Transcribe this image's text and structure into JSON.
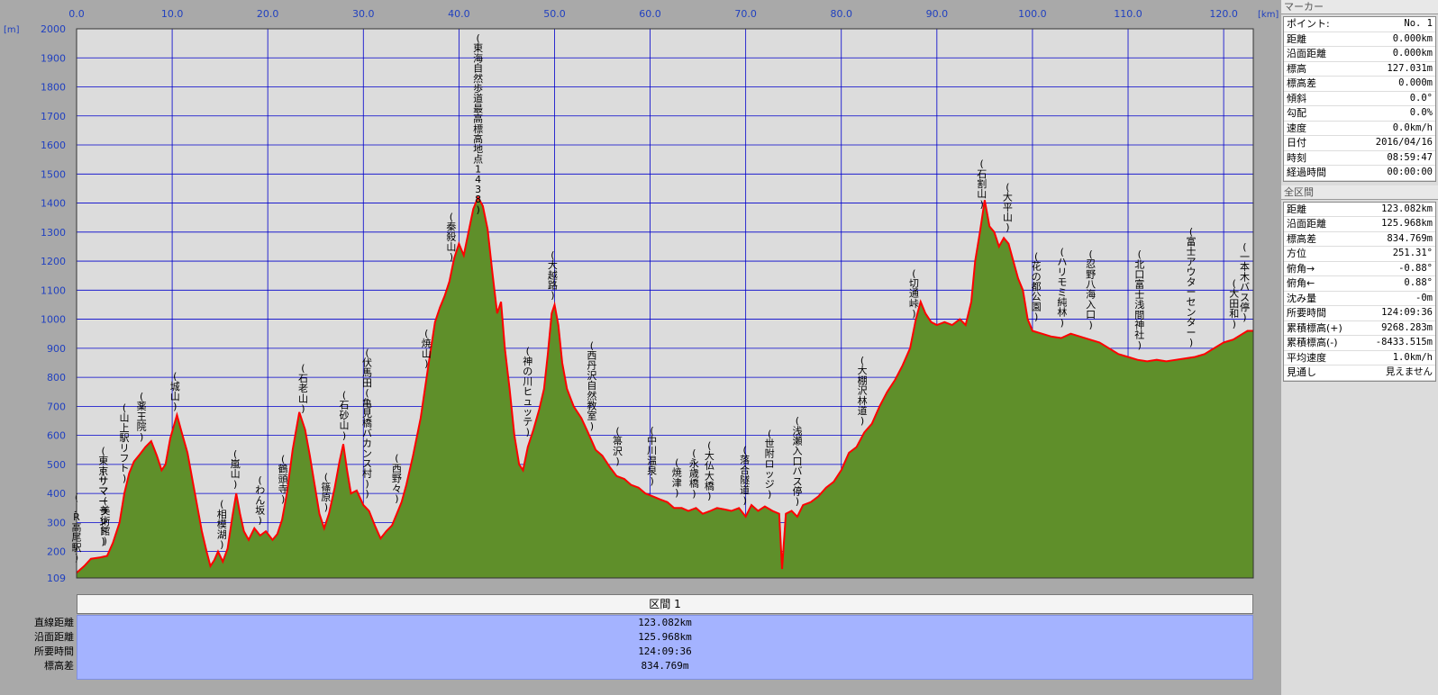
{
  "chart_data": {
    "type": "area",
    "x_unit": "[km]",
    "y_unit": "[m]",
    "xlim": [
      0,
      123.1
    ],
    "ylim": [
      109,
      2000
    ],
    "x_ticks": [
      "0.0",
      "10.0",
      "20.0",
      "30.0",
      "40.0",
      "50.0",
      "60.0",
      "70.0",
      "80.0",
      "90.0",
      "100.0",
      "110.0",
      "120.0"
    ],
    "y_ticks": [
      "2000",
      "1900",
      "1800",
      "1700",
      "1600",
      "1500",
      "1400",
      "1300",
      "1200",
      "1100",
      "1000",
      "900",
      "800",
      "700",
      "600",
      "500",
      "400",
      "300",
      "200",
      "109"
    ],
    "colors": {
      "plot_bg": "#dcdcdc",
      "grid": "#0000cc",
      "fill": "#5f8f2a",
      "line": "#ff0000"
    },
    "profile": [
      [
        0,
        127
      ],
      [
        0.8,
        150
      ],
      [
        1.5,
        175
      ],
      [
        2.5,
        180
      ],
      [
        3.2,
        185
      ],
      [
        3.8,
        230
      ],
      [
        4.5,
        300
      ],
      [
        5.0,
        400
      ],
      [
        5.5,
        470
      ],
      [
        6.0,
        510
      ],
      [
        6.5,
        530
      ],
      [
        7.2,
        560
      ],
      [
        7.8,
        580
      ],
      [
        8.4,
        530
      ],
      [
        8.9,
        480
      ],
      [
        9.3,
        500
      ],
      [
        9.8,
        590
      ],
      [
        10.5,
        670
      ],
      [
        11.0,
        610
      ],
      [
        11.6,
        540
      ],
      [
        12.1,
        450
      ],
      [
        12.6,
        360
      ],
      [
        13.1,
        270
      ],
      [
        13.6,
        200
      ],
      [
        14.0,
        150
      ],
      [
        14.4,
        170
      ],
      [
        14.8,
        200
      ],
      [
        15.3,
        165
      ],
      [
        15.8,
        210
      ],
      [
        16.3,
        320
      ],
      [
        16.7,
        400
      ],
      [
        17.1,
        330
      ],
      [
        17.5,
        270
      ],
      [
        18.0,
        240
      ],
      [
        18.6,
        280
      ],
      [
        19.2,
        255
      ],
      [
        19.8,
        270
      ],
      [
        20.5,
        240
      ],
      [
        21.0,
        260
      ],
      [
        21.5,
        310
      ],
      [
        22.0,
        400
      ],
      [
        22.6,
        550
      ],
      [
        23.3,
        680
      ],
      [
        23.9,
        620
      ],
      [
        24.4,
        530
      ],
      [
        24.9,
        430
      ],
      [
        25.4,
        330
      ],
      [
        25.9,
        280
      ],
      [
        26.4,
        330
      ],
      [
        27.0,
        420
      ],
      [
        27.5,
        510
      ],
      [
        27.9,
        570
      ],
      [
        28.3,
        480
      ],
      [
        28.7,
        400
      ],
      [
        29.3,
        410
      ],
      [
        30.0,
        360
      ],
      [
        30.6,
        340
      ],
      [
        31.2,
        290
      ],
      [
        31.8,
        245
      ],
      [
        32.4,
        270
      ],
      [
        33.0,
        290
      ],
      [
        33.5,
        330
      ],
      [
        34.0,
        370
      ],
      [
        34.5,
        430
      ],
      [
        35.2,
        530
      ],
      [
        36.0,
        660
      ],
      [
        36.8,
        840
      ],
      [
        37.5,
        990
      ],
      [
        38.0,
        1040
      ],
      [
        38.5,
        1080
      ],
      [
        39.0,
        1130
      ],
      [
        39.5,
        1210
      ],
      [
        40.0,
        1260
      ],
      [
        40.5,
        1220
      ],
      [
        41.0,
        1300
      ],
      [
        41.5,
        1380
      ],
      [
        42.0,
        1420
      ],
      [
        42.5,
        1390
      ],
      [
        43.0,
        1310
      ],
      [
        43.5,
        1160
      ],
      [
        44.0,
        1020
      ],
      [
        44.4,
        1060
      ],
      [
        44.8,
        900
      ],
      [
        45.3,
        760
      ],
      [
        45.8,
        600
      ],
      [
        46.3,
        500
      ],
      [
        46.7,
        480
      ],
      [
        47.2,
        560
      ],
      [
        47.8,
        620
      ],
      [
        48.4,
        690
      ],
      [
        48.9,
        760
      ],
      [
        49.3,
        880
      ],
      [
        49.7,
        1020
      ],
      [
        50.0,
        1050
      ],
      [
        50.4,
        980
      ],
      [
        50.8,
        850
      ],
      [
        51.3,
        760
      ],
      [
        52.0,
        700
      ],
      [
        52.8,
        660
      ],
      [
        53.5,
        610
      ],
      [
        54.3,
        550
      ],
      [
        55.0,
        530
      ],
      [
        55.8,
        490
      ],
      [
        56.5,
        460
      ],
      [
        57.3,
        450
      ],
      [
        58.0,
        430
      ],
      [
        58.8,
        420
      ],
      [
        59.5,
        400
      ],
      [
        60.3,
        390
      ],
      [
        61.0,
        380
      ],
      [
        61.8,
        370
      ],
      [
        62.5,
        350
      ],
      [
        63.3,
        350
      ],
      [
        64.0,
        340
      ],
      [
        64.8,
        350
      ],
      [
        65.5,
        330
      ],
      [
        66.3,
        340
      ],
      [
        67.0,
        350
      ],
      [
        67.8,
        345
      ],
      [
        68.5,
        340
      ],
      [
        69.3,
        350
      ],
      [
        70.0,
        320
      ],
      [
        70.6,
        360
      ],
      [
        71.3,
        340
      ],
      [
        72.0,
        355
      ],
      [
        72.8,
        340
      ],
      [
        73.5,
        330
      ],
      [
        73.8,
        140
      ],
      [
        74.2,
        330
      ],
      [
        74.8,
        340
      ],
      [
        75.4,
        320
      ],
      [
        76.0,
        360
      ],
      [
        76.8,
        370
      ],
      [
        77.6,
        390
      ],
      [
        78.4,
        420
      ],
      [
        79.2,
        440
      ],
      [
        80.0,
        480
      ],
      [
        80.8,
        540
      ],
      [
        81.6,
        560
      ],
      [
        82.4,
        610
      ],
      [
        83.2,
        640
      ],
      [
        84.0,
        700
      ],
      [
        84.8,
        750
      ],
      [
        85.6,
        790
      ],
      [
        86.4,
        840
      ],
      [
        87.2,
        900
      ],
      [
        87.8,
        1000
      ],
      [
        88.3,
        1060
      ],
      [
        88.8,
        1020
      ],
      [
        89.4,
        990
      ],
      [
        90.0,
        980
      ],
      [
        90.8,
        990
      ],
      [
        91.6,
        980
      ],
      [
        92.4,
        1000
      ],
      [
        93.0,
        980
      ],
      [
        93.6,
        1060
      ],
      [
        94.0,
        1200
      ],
      [
        94.5,
        1300
      ],
      [
        95.0,
        1410
      ],
      [
        95.5,
        1320
      ],
      [
        96.0,
        1300
      ],
      [
        96.5,
        1250
      ],
      [
        97.0,
        1280
      ],
      [
        97.5,
        1260
      ],
      [
        98.0,
        1200
      ],
      [
        98.5,
        1140
      ],
      [
        99.0,
        1100
      ],
      [
        99.5,
        1000
      ],
      [
        100.0,
        960
      ],
      [
        101.0,
        950
      ],
      [
        102.0,
        940
      ],
      [
        103.0,
        935
      ],
      [
        104.0,
        950
      ],
      [
        105.0,
        940
      ],
      [
        106.0,
        930
      ],
      [
        107.0,
        920
      ],
      [
        108.0,
        900
      ],
      [
        109.0,
        880
      ],
      [
        110.0,
        870
      ],
      [
        111.0,
        860
      ],
      [
        112.0,
        855
      ],
      [
        113.0,
        860
      ],
      [
        114.0,
        855
      ],
      [
        115.0,
        860
      ],
      [
        116.0,
        865
      ],
      [
        117.0,
        870
      ],
      [
        118.0,
        880
      ],
      [
        119.0,
        900
      ],
      [
        120.0,
        920
      ],
      [
        121.0,
        930
      ],
      [
        122.0,
        950
      ],
      [
        122.5,
        960
      ],
      [
        123.1,
        960
      ]
    ],
    "annotations": [
      {
        "label": "(JR高尾駅)",
        "x": 0.0
      },
      {
        "label": "(サマーランド)",
        "x": 2.8
      },
      {
        "label": "(東京サマーランド)",
        "x": 2.8
      },
      {
        "label": "(美術館)",
        "x": 3.0
      },
      {
        "label": "(山上駅リフト)",
        "x": 5.0
      },
      {
        "label": "(薬王院)",
        "x": 6.8
      },
      {
        "label": "(城山)",
        "x": 10.3
      },
      {
        "label": "(相模湖)",
        "x": 15.2
      },
      {
        "label": "(嵐山)",
        "x": 16.6
      },
      {
        "label": "(わん坂)",
        "x": 19.2
      },
      {
        "label": "(鶴頭寺)",
        "x": 21.6
      },
      {
        "label": "(石老山)",
        "x": 23.7
      },
      {
        "label": "(篠原)",
        "x": 26.1
      },
      {
        "label": "(石砂山)",
        "x": 28.0
      },
      {
        "label": "(伏馬田(亀見橋バカンス村))",
        "x": 30.4
      },
      {
        "label": "(西野々)",
        "x": 33.5
      },
      {
        "label": "(焼山)",
        "x": 36.6
      },
      {
        "label": "(秦殺山)",
        "x": 39.2
      },
      {
        "label": "(東海自然歩道最高標高地点1438)",
        "x": 42.0
      },
      {
        "label": "(神の川ヒュッテ)",
        "x": 47.2
      },
      {
        "label": "(大越路)",
        "x": 49.8
      },
      {
        "label": "(西丹沢自然教室)",
        "x": 53.9
      },
      {
        "label": "(箒沢)",
        "x": 56.6
      },
      {
        "label": "(中川温泉)",
        "x": 60.2
      },
      {
        "label": "(焼津)",
        "x": 62.8
      },
      {
        "label": "(永歳橋)",
        "x": 64.6
      },
      {
        "label": "(大仏大橋)",
        "x": 66.2
      },
      {
        "label": "(落合隧道)",
        "x": 69.9
      },
      {
        "label": "(世附ロッジ)",
        "x": 72.5
      },
      {
        "label": "(浅瀬入口バス停)",
        "x": 75.4
      },
      {
        "label": "(大棚沢林道)",
        "x": 82.2
      },
      {
        "label": "(切通峠)",
        "x": 87.6
      },
      {
        "label": "(石割山)",
        "x": 94.7
      },
      {
        "label": "(大平山)",
        "x": 97.4
      },
      {
        "label": "(花の都公園)",
        "x": 100.4
      },
      {
        "label": "(ハリモミ純林)",
        "x": 103.1
      },
      {
        "label": "(忍野八海入口)",
        "x": 106.1
      },
      {
        "label": "(北口富士浅間神社)",
        "x": 111.2
      },
      {
        "label": "(富士アウターセンター)",
        "x": 116.6
      },
      {
        "label": "(大田和)",
        "x": 121.1
      },
      {
        "label": "(一本木バス停)",
        "x": 122.2
      }
    ]
  },
  "section": {
    "tab_label": "区間 1",
    "rows": [
      {
        "label": "直線距離",
        "value": "123.082km"
      },
      {
        "label": "沿面距離",
        "value": "125.968km"
      },
      {
        "label": "所要時間",
        "value": "124:09:36"
      },
      {
        "label": "標高差",
        "value": "834.769m"
      }
    ]
  },
  "marker_panel": {
    "title": "マーカー",
    "rows": [
      {
        "label": "ポイント:",
        "value": "No. 1"
      },
      {
        "label": "距離",
        "value": "0.000km"
      },
      {
        "label": "沿面距離",
        "value": "0.000km"
      },
      {
        "label": "標高",
        "value": "127.031m"
      },
      {
        "label": "標高差",
        "value": "0.000m"
      },
      {
        "label": "傾斜",
        "value": "0.0°"
      },
      {
        "label": "勾配",
        "value": "0.0%"
      },
      {
        "label": "速度",
        "value": "0.0km/h"
      },
      {
        "label": "日付",
        "value": "2016/04/16"
      },
      {
        "label": "時刻",
        "value": "08:59:47"
      },
      {
        "label": "経過時間",
        "value": "00:00:00"
      }
    ]
  },
  "total_panel": {
    "title": "全区間",
    "rows": [
      {
        "label": "距離",
        "value": "123.082km"
      },
      {
        "label": "沿面距離",
        "value": "125.968km"
      },
      {
        "label": "標高差",
        "value": "834.769m"
      },
      {
        "label": "方位",
        "value": "251.31°"
      },
      {
        "label": "俯角→",
        "value": "-0.88°"
      },
      {
        "label": "俯角←",
        "value": "0.88°"
      },
      {
        "label": "沈み量",
        "value": "-0m"
      },
      {
        "label": "所要時間",
        "value": "124:09:36"
      },
      {
        "label": "累積標高(+)",
        "value": "9268.283m"
      },
      {
        "label": "累積標高(-)",
        "value": "-8433.515m"
      },
      {
        "label": "平均速度",
        "value": "1.0km/h"
      },
      {
        "label": "見通し",
        "value": "見えません"
      }
    ]
  }
}
